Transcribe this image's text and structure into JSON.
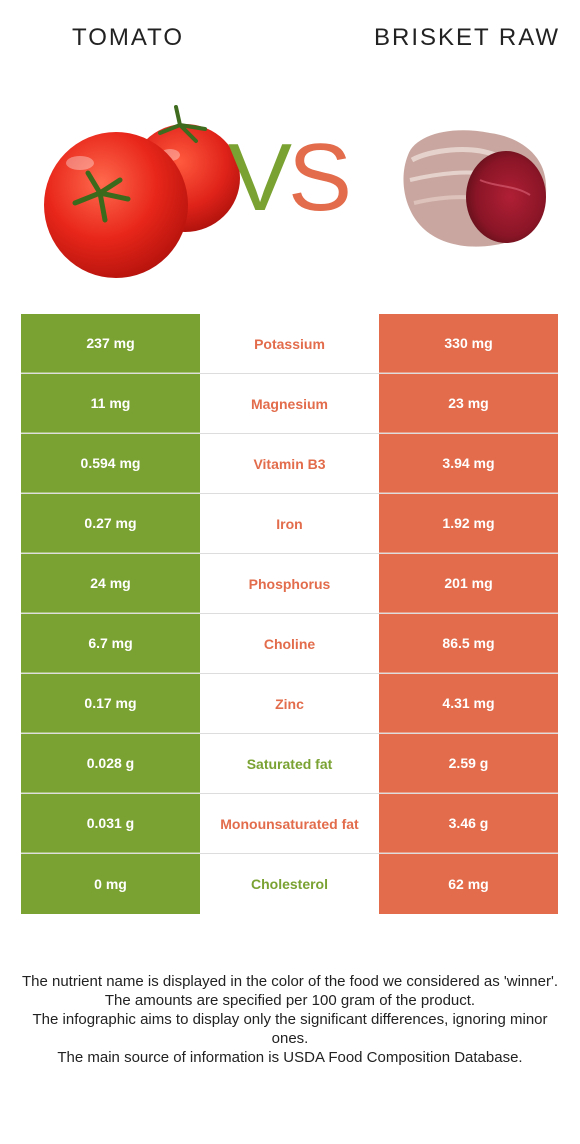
{
  "header": {
    "left_food": "TOMATO",
    "right_food": "BRISKET RAW",
    "vs_v": "V",
    "vs_s": "S"
  },
  "colors": {
    "left_accent": "#7aa232",
    "right_accent": "#e26c4b"
  },
  "rows": [
    {
      "left": "237 mg",
      "nutrient": "Potassium",
      "right": "330 mg",
      "winner": "right"
    },
    {
      "left": "11 mg",
      "nutrient": "Magnesium",
      "right": "23 mg",
      "winner": "right"
    },
    {
      "left": "0.594 mg",
      "nutrient": "Vitamin B3",
      "right": "3.94 mg",
      "winner": "right"
    },
    {
      "left": "0.27 mg",
      "nutrient": "Iron",
      "right": "1.92 mg",
      "winner": "right"
    },
    {
      "left": "24 mg",
      "nutrient": "Phosphorus",
      "right": "201 mg",
      "winner": "right"
    },
    {
      "left": "6.7 mg",
      "nutrient": "Choline",
      "right": "86.5 mg",
      "winner": "right"
    },
    {
      "left": "0.17 mg",
      "nutrient": "Zinc",
      "right": "4.31 mg",
      "winner": "right"
    },
    {
      "left": "0.028 g",
      "nutrient": "Saturated fat",
      "right": "2.59 g",
      "winner": "left"
    },
    {
      "left": "0.031 g",
      "nutrient": "Monounsaturated fat",
      "right": "3.46 g",
      "winner": "right"
    },
    {
      "left": "0 mg",
      "nutrient": "Cholesterol",
      "right": "62 mg",
      "winner": "left"
    }
  ],
  "notes": [
    "The nutrient name is displayed in the color of the food we considered as 'winner'.",
    "The amounts are specified per 100 gram of the product.",
    "The infographic aims to display only the significant differences, ignoring minor ones.",
    "The main source of information is USDA Food Composition Database."
  ]
}
